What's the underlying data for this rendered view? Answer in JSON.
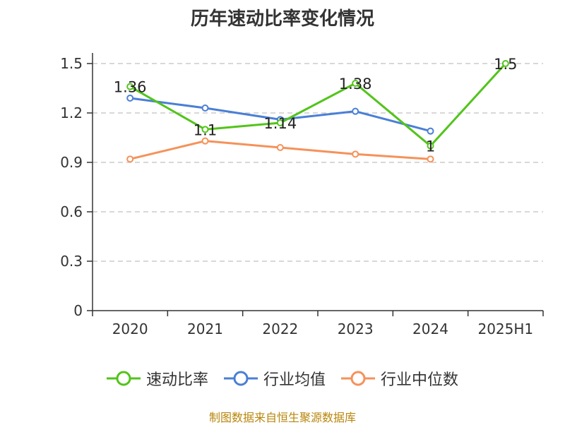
{
  "chart_data": {
    "type": "line",
    "title": "历年速动比率变化情况",
    "xlabel": "",
    "ylabel": "",
    "categories": [
      "2020",
      "2021",
      "2022",
      "2023",
      "2024",
      "2025H1"
    ],
    "ylim": [
      0,
      1.5
    ],
    "yticks": [
      "0",
      "0.3",
      "0.6",
      "0.9",
      "1.2",
      "1.5"
    ],
    "grid": true,
    "legend_position": "bottom",
    "series": [
      {
        "name": "速动比率",
        "color": "#52c41a",
        "values": [
          1.36,
          1.1,
          1.14,
          1.38,
          1,
          1.5
        ],
        "labels": [
          "1.36",
          "1.1",
          "1.14",
          "1.38",
          "1",
          "1.5"
        ]
      },
      {
        "name": "行业均值",
        "color": "#4a7fd6",
        "values": [
          1.29,
          1.23,
          1.16,
          1.21,
          1.09,
          null
        ]
      },
      {
        "name": "行业中位数",
        "color": "#f5925a",
        "values": [
          0.92,
          1.03,
          0.99,
          0.95,
          0.92,
          null
        ]
      }
    ]
  },
  "footer": "制图数据来自恒生聚源数据库"
}
